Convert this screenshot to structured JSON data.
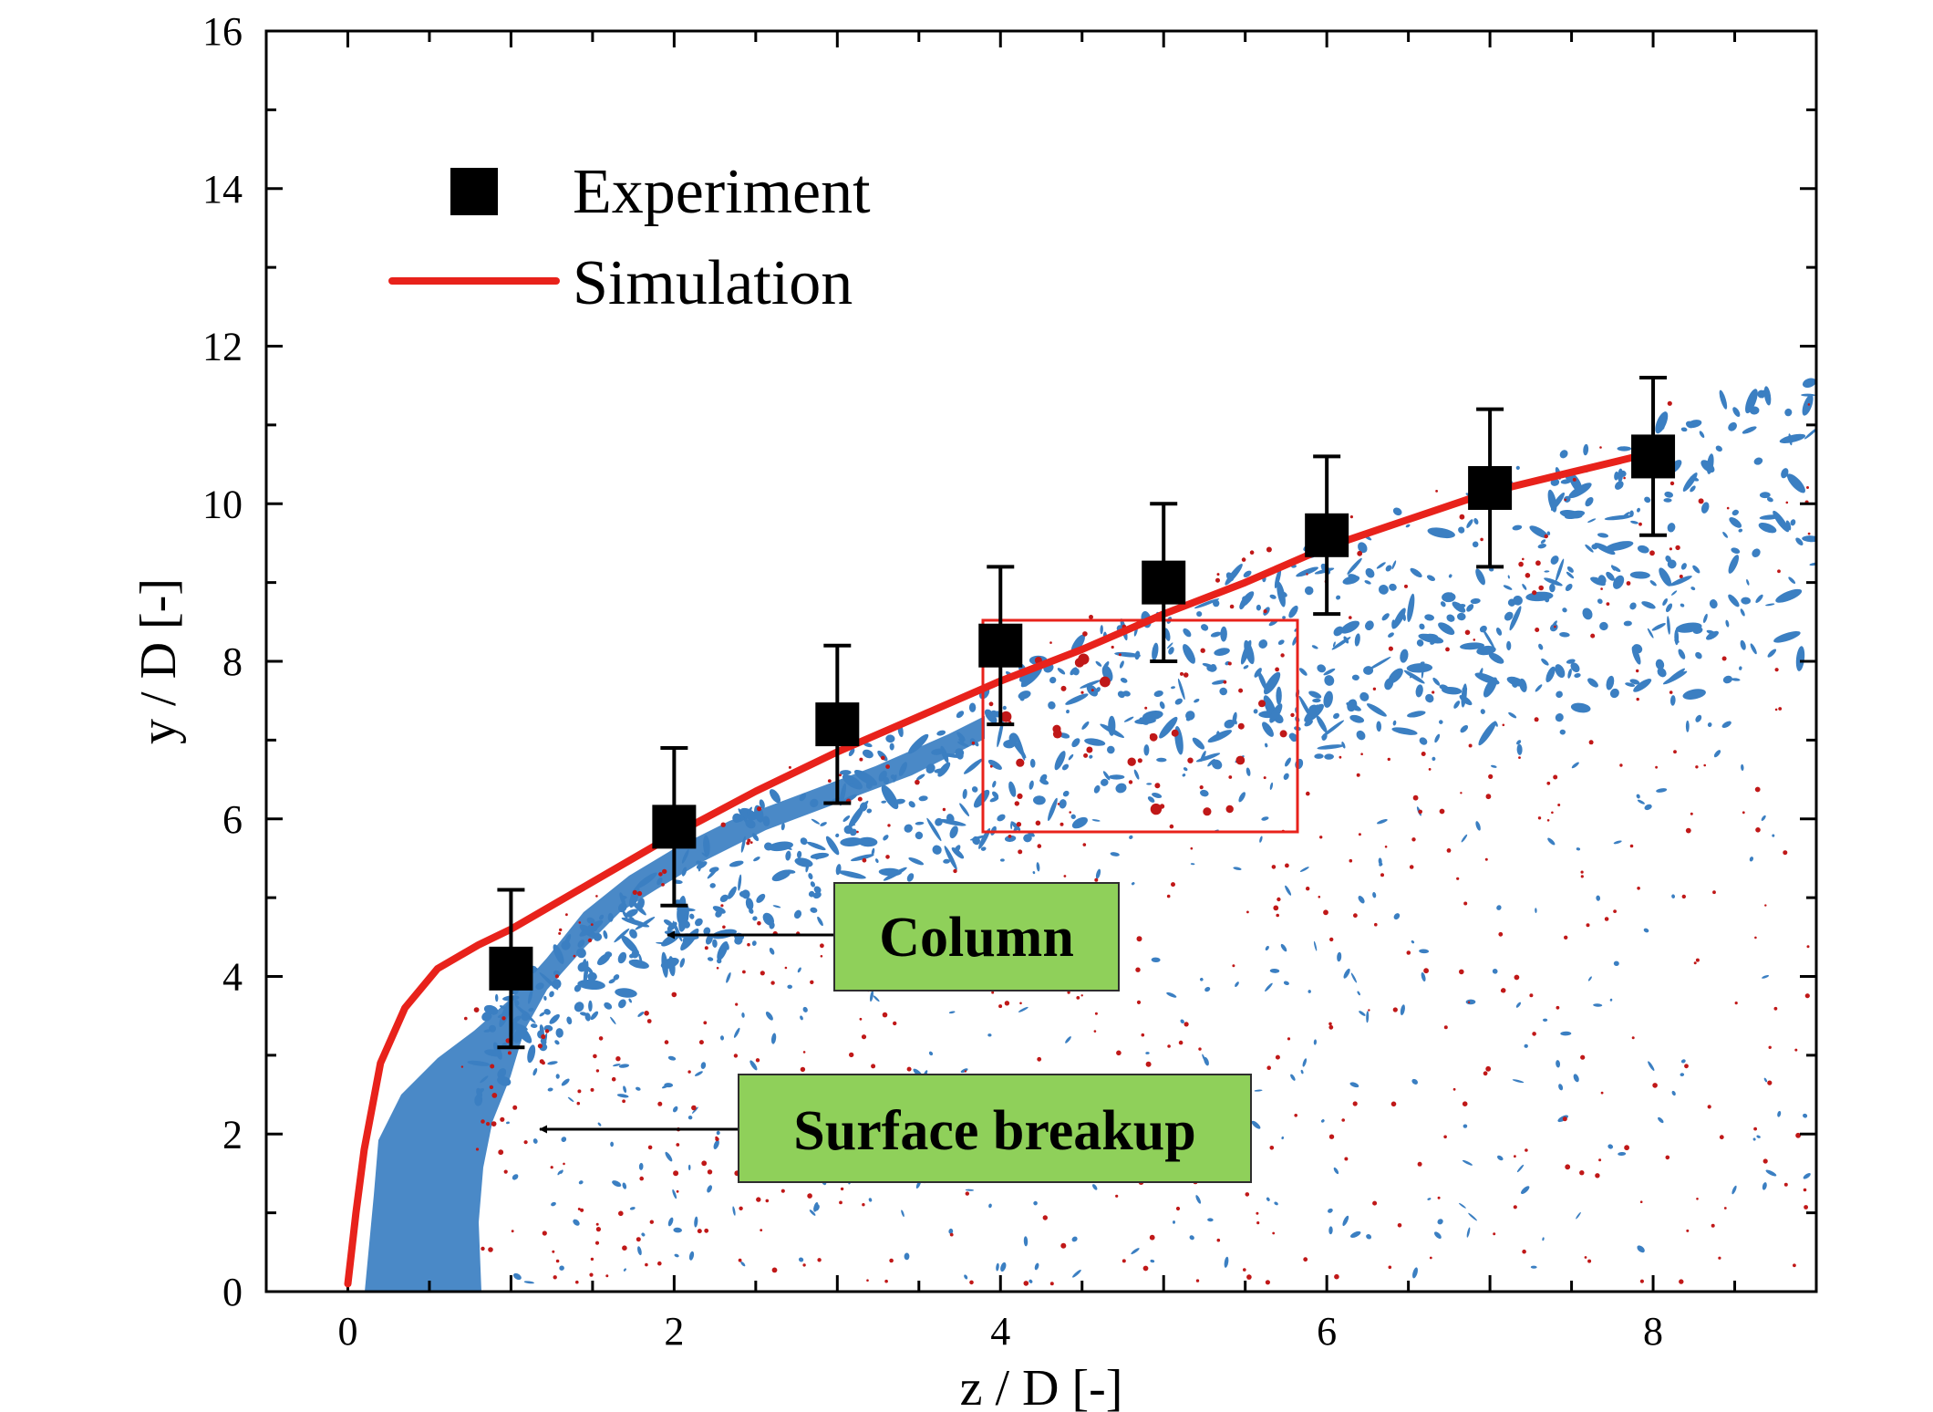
{
  "chart_data": {
    "type": "scatter",
    "xlabel": "z / D [-]",
    "ylabel": "y / D [-]",
    "xlim": [
      -0.5,
      9
    ],
    "ylim": [
      0,
      16
    ],
    "xticks": [
      0,
      2,
      4,
      6,
      8
    ],
    "yticks": [
      0,
      2,
      4,
      6,
      8,
      10,
      12,
      14,
      16
    ],
    "grid": false,
    "legend_position": "top-left",
    "series": [
      {
        "name": "Experiment",
        "kind": "points-with-error-bars",
        "color": "#000000",
        "x": [
          1,
          2,
          3,
          4,
          5,
          6,
          7,
          8
        ],
        "y": [
          4.1,
          5.9,
          7.2,
          8.2,
          9.0,
          9.6,
          10.2,
          10.6
        ],
        "err": [
          1.0,
          1.0,
          1.0,
          1.0,
          1.0,
          1.0,
          1.0,
          1.0
        ]
      },
      {
        "name": "Simulation",
        "kind": "line",
        "color": "#e8221b",
        "x": [
          0.0,
          0.05,
          0.1,
          0.2,
          0.35,
          0.55,
          0.8,
          1.0,
          1.5,
          2.0,
          2.5,
          3.0,
          3.5,
          4.0,
          4.5,
          5.0,
          5.5,
          6.0,
          6.5,
          7.0,
          7.5,
          8.0
        ],
        "y": [
          0.1,
          1.0,
          1.8,
          2.9,
          3.6,
          4.1,
          4.4,
          4.6,
          5.2,
          5.8,
          6.35,
          6.85,
          7.3,
          7.75,
          8.15,
          8.6,
          9.0,
          9.45,
          9.8,
          10.15,
          10.4,
          10.65
        ]
      }
    ],
    "annotations": [
      {
        "text": "Column",
        "fill": "#8fd05a"
      },
      {
        "text": "Surface breakup",
        "fill": "#8fd05a"
      }
    ],
    "highlight_color": "#e8221b",
    "spray_color": "#3b7fc2",
    "droplet_color": "#c01818"
  }
}
